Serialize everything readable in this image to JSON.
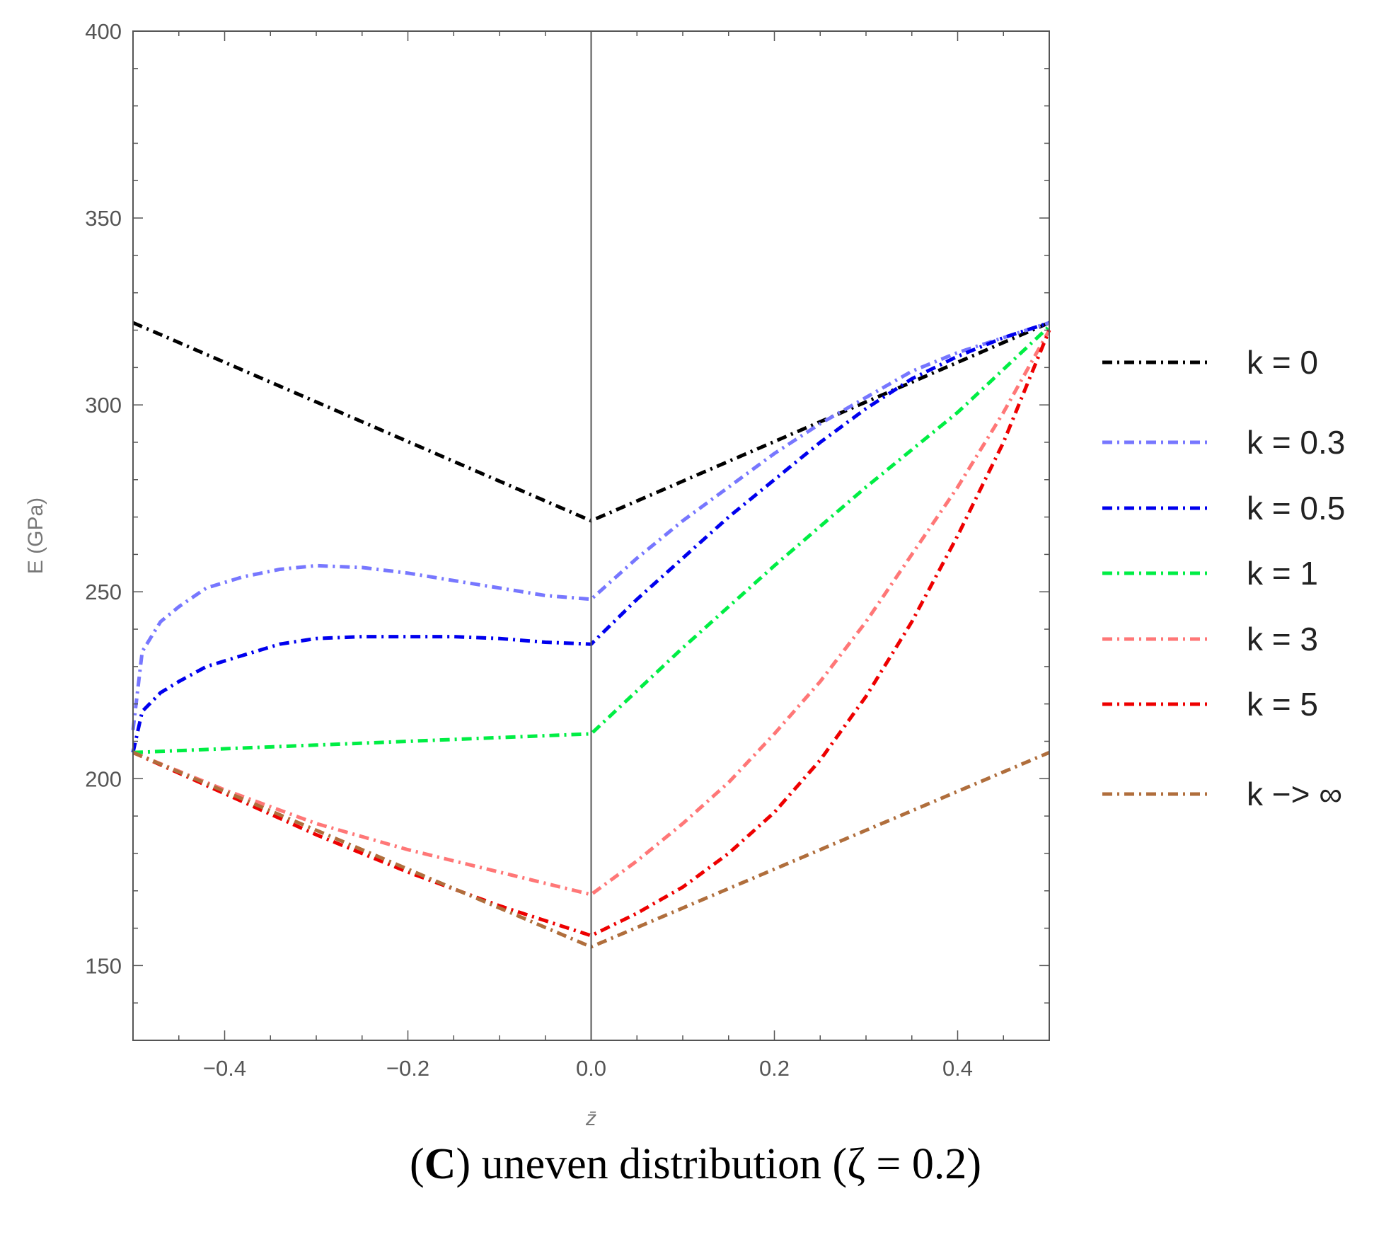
{
  "chart_data": {
    "type": "line",
    "title": "",
    "xlabel": "z̄",
    "ylabel": "E (GPa)",
    "xlim": [
      -0.5,
      0.5
    ],
    "ylim": [
      130,
      400
    ],
    "xticks": [
      -0.4,
      -0.2,
      0.0,
      0.2,
      0.4
    ],
    "xtick_labels": [
      "-0.4",
      "-0.2",
      "0.0",
      "0.2",
      "0.4"
    ],
    "yticks": [
      150,
      200,
      250,
      300,
      350,
      400
    ],
    "ytick_labels": [
      "150",
      "200",
      "250",
      "300",
      "350",
      "400"
    ],
    "legend_position": "right",
    "line_style": "dot-dash",
    "series": [
      {
        "name": "k = 0",
        "color": "#000000",
        "x": [
          -0.5,
          0.0,
          0.5
        ],
        "y": [
          322,
          269,
          322
        ]
      },
      {
        "name": "k = 0.3",
        "color": "#7777ff",
        "x": [
          -0.5,
          -0.49,
          -0.47,
          -0.45,
          -0.42,
          -0.38,
          -0.34,
          -0.3,
          -0.25,
          -0.2,
          -0.15,
          -0.1,
          -0.05,
          0.0,
          0.05,
          0.1,
          0.15,
          0.2,
          0.25,
          0.3,
          0.35,
          0.4,
          0.45,
          0.5
        ],
        "y": [
          213,
          234,
          242,
          246,
          251,
          254,
          256,
          257,
          256.5,
          255,
          253,
          251,
          249,
          248,
          259,
          269,
          278,
          287,
          295,
          302,
          309,
          314,
          318,
          322
        ]
      },
      {
        "name": "k = 0.5",
        "color": "#0000ee",
        "x": [
          -0.5,
          -0.49,
          -0.47,
          -0.45,
          -0.42,
          -0.38,
          -0.34,
          -0.3,
          -0.25,
          -0.2,
          -0.15,
          -0.1,
          -0.05,
          0.0,
          0.05,
          0.1,
          0.15,
          0.2,
          0.25,
          0.3,
          0.35,
          0.4,
          0.45,
          0.5
        ],
        "y": [
          207,
          218,
          223,
          226,
          230,
          233,
          236,
          237.5,
          238,
          238,
          238,
          237.5,
          236.5,
          236,
          248,
          259,
          270,
          280,
          290,
          299,
          307,
          313,
          318,
          322
        ]
      },
      {
        "name": "k = 1",
        "color": "#00ee44",
        "x": [
          -0.5,
          -0.4,
          -0.3,
          -0.2,
          -0.1,
          0.0,
          0.1,
          0.2,
          0.3,
          0.4,
          0.5
        ],
        "y": [
          207,
          208,
          209,
          210,
          211,
          212,
          235,
          257,
          278,
          298,
          321
        ]
      },
      {
        "name": "k = 3",
        "color": "#ff7777",
        "x": [
          -0.5,
          -0.4,
          -0.3,
          -0.2,
          -0.1,
          0.0,
          0.05,
          0.1,
          0.15,
          0.2,
          0.25,
          0.3,
          0.35,
          0.4,
          0.45,
          0.5
        ],
        "y": [
          207,
          197,
          188,
          181,
          175,
          169,
          178,
          188,
          199,
          212,
          226,
          242,
          260,
          278,
          298,
          320
        ]
      },
      {
        "name": "k = 5",
        "color": "#ee0000",
        "x": [
          -0.5,
          -0.4,
          -0.3,
          -0.2,
          -0.1,
          0.0,
          0.05,
          0.1,
          0.15,
          0.2,
          0.25,
          0.3,
          0.35,
          0.4,
          0.45,
          0.5
        ],
        "y": [
          207,
          196,
          185,
          175,
          166,
          158,
          164,
          171,
          180,
          191,
          205,
          222,
          242,
          265,
          290,
          320
        ]
      },
      {
        "name": "k -> ∞",
        "color": "#b06e3c",
        "x": [
          -0.5,
          0.0,
          0.5
        ],
        "y": [
          207,
          155,
          207
        ]
      }
    ]
  },
  "caption": {
    "label": "C",
    "text": "uneven distribution (ζ = 0.2)"
  }
}
